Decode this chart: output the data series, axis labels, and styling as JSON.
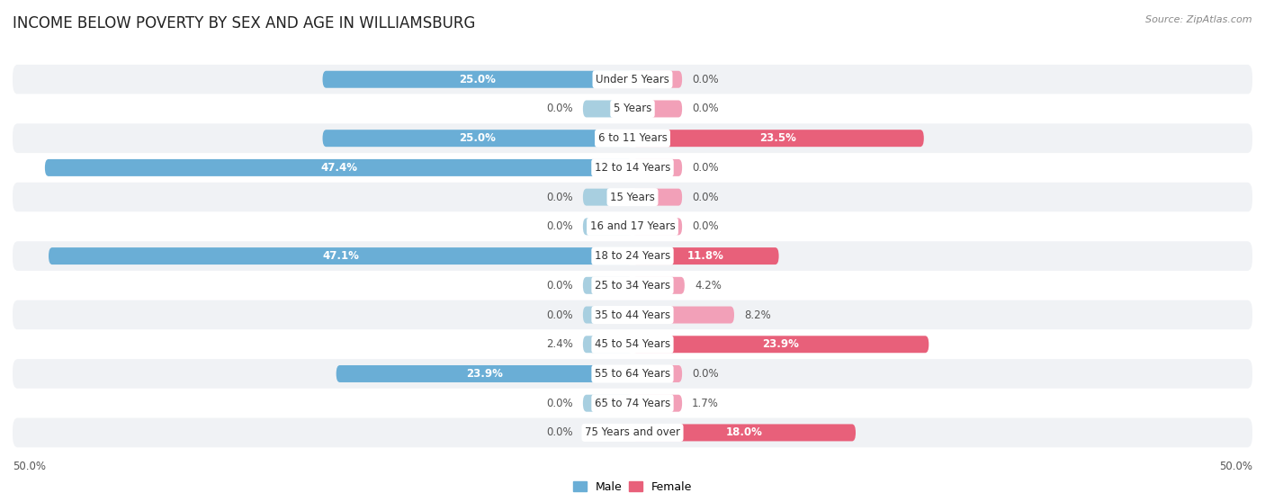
{
  "title": "INCOME BELOW POVERTY BY SEX AND AGE IN WILLIAMSBURG",
  "source": "Source: ZipAtlas.com",
  "categories": [
    "Under 5 Years",
    "5 Years",
    "6 to 11 Years",
    "12 to 14 Years",
    "15 Years",
    "16 and 17 Years",
    "18 to 24 Years",
    "25 to 34 Years",
    "35 to 44 Years",
    "45 to 54 Years",
    "55 to 64 Years",
    "65 to 74 Years",
    "75 Years and over"
  ],
  "male": [
    25.0,
    0.0,
    25.0,
    47.4,
    0.0,
    0.0,
    47.1,
    0.0,
    0.0,
    2.4,
    23.9,
    0.0,
    0.0
  ],
  "female": [
    0.0,
    0.0,
    23.5,
    0.0,
    0.0,
    0.0,
    11.8,
    4.2,
    8.2,
    23.9,
    0.0,
    1.7,
    18.0
  ],
  "male_color_strong": "#6aaed6",
  "male_color_light": "#a8cfe0",
  "female_color_strong": "#e8607a",
  "female_color_light": "#f2a0b8",
  "row_odd_color": "#f0f2f5",
  "row_even_color": "#ffffff",
  "axis_limit": 50.0,
  "bar_height": 0.58,
  "min_bar": 4.0,
  "label_fontsize": 8.5,
  "title_fontsize": 12,
  "source_fontsize": 8
}
